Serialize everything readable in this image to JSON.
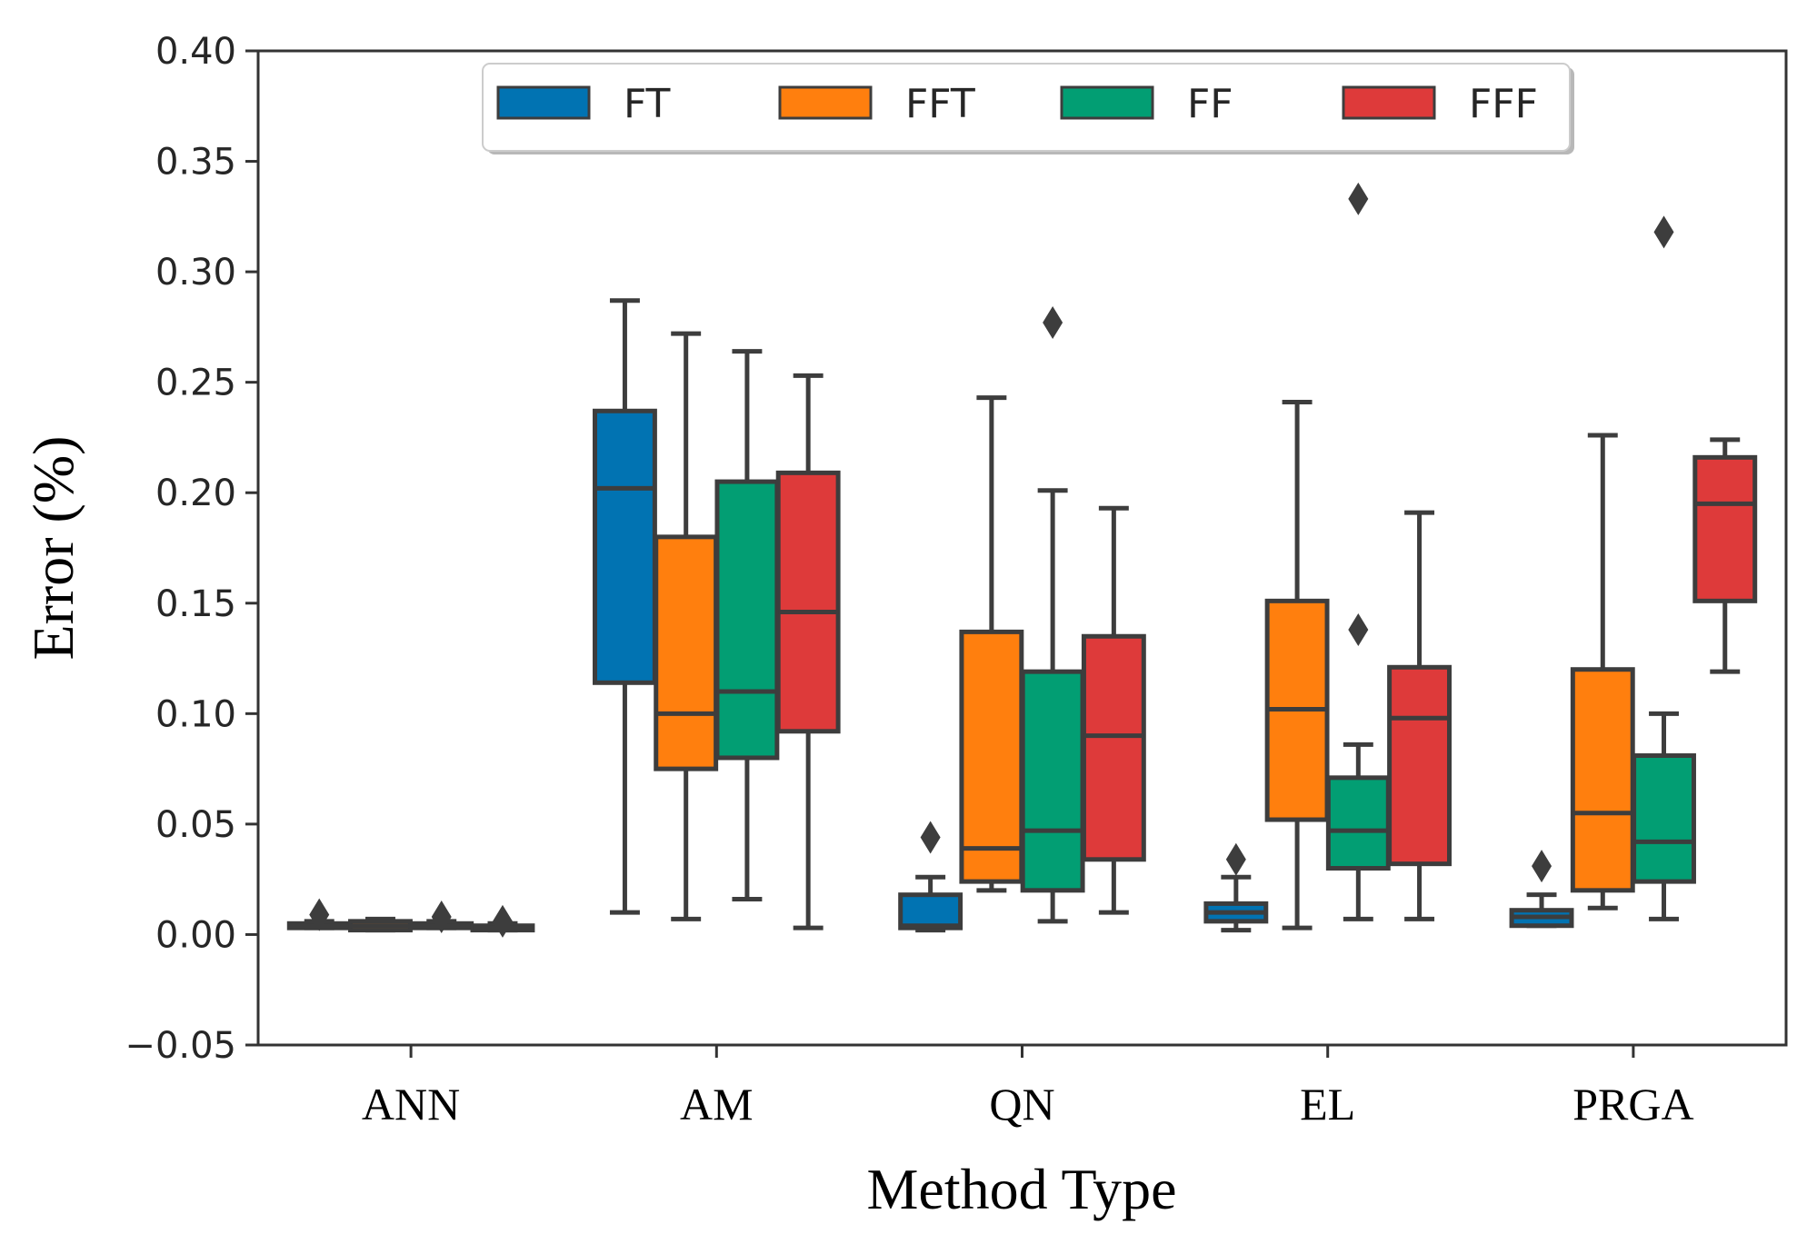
{
  "chart_data": {
    "type": "box",
    "xlabel": "Method Type",
    "ylabel": "Error (%)",
    "ylim": [
      -0.05,
      0.4
    ],
    "yticks": [
      -0.05,
      0.0,
      0.05,
      0.1,
      0.15,
      0.2,
      0.25,
      0.3,
      0.35,
      0.4
    ],
    "ytick_labels": [
      "−0.05",
      "0.00",
      "0.05",
      "0.10",
      "0.15",
      "0.20",
      "0.25",
      "0.30",
      "0.35",
      "0.40"
    ],
    "categories": [
      "ANN",
      "AM",
      "QN",
      "EL",
      "PRGA"
    ],
    "legend_position": "top-center",
    "grid": false,
    "series": [
      {
        "name": "FT",
        "color": "#0173b2",
        "boxes": [
          {
            "category": "ANN",
            "min": 0.003,
            "q1": 0.003,
            "median": 0.004,
            "q3": 0.005,
            "max": 0.006,
            "outliers": [
              0.009
            ]
          },
          {
            "category": "AM",
            "min": 0.01,
            "q1": 0.114,
            "median": 0.202,
            "q3": 0.237,
            "max": 0.287,
            "outliers": []
          },
          {
            "category": "QN",
            "min": 0.002,
            "q1": 0.003,
            "median": 0.004,
            "q3": 0.018,
            "max": 0.026,
            "outliers": [
              0.044
            ]
          },
          {
            "category": "EL",
            "min": 0.002,
            "q1": 0.006,
            "median": 0.01,
            "q3": 0.014,
            "max": 0.026,
            "outliers": [
              0.034
            ]
          },
          {
            "category": "PRGA",
            "min": 0.004,
            "q1": 0.004,
            "median": 0.008,
            "q3": 0.011,
            "max": 0.018,
            "outliers": [
              0.031
            ]
          }
        ]
      },
      {
        "name": "FFT",
        "color": "#ff7f0e",
        "boxes": [
          {
            "category": "ANN",
            "min": 0.002,
            "q1": 0.002,
            "median": 0.004,
            "q3": 0.006,
            "max": 0.007,
            "outliers": []
          },
          {
            "category": "AM",
            "min": 0.007,
            "q1": 0.075,
            "median": 0.1,
            "q3": 0.18,
            "max": 0.272,
            "outliers": []
          },
          {
            "category": "QN",
            "min": 0.02,
            "q1": 0.024,
            "median": 0.039,
            "q3": 0.137,
            "max": 0.243,
            "outliers": []
          },
          {
            "category": "EL",
            "min": 0.003,
            "q1": 0.052,
            "median": 0.102,
            "q3": 0.151,
            "max": 0.241,
            "outliers": []
          },
          {
            "category": "PRGA",
            "min": 0.012,
            "q1": 0.02,
            "median": 0.055,
            "q3": 0.12,
            "max": 0.226,
            "outliers": []
          }
        ]
      },
      {
        "name": "FF",
        "color": "#029e73",
        "boxes": [
          {
            "category": "ANN",
            "min": 0.003,
            "q1": 0.003,
            "median": 0.004,
            "q3": 0.005,
            "max": 0.006,
            "outliers": [
              0.008
            ]
          },
          {
            "category": "AM",
            "min": 0.016,
            "q1": 0.08,
            "median": 0.11,
            "q3": 0.205,
            "max": 0.264,
            "outliers": []
          },
          {
            "category": "QN",
            "min": 0.006,
            "q1": 0.02,
            "median": 0.047,
            "q3": 0.119,
            "max": 0.201,
            "outliers": [
              0.277
            ]
          },
          {
            "category": "EL",
            "min": 0.007,
            "q1": 0.03,
            "median": 0.047,
            "q3": 0.071,
            "max": 0.086,
            "outliers": [
              0.138,
              0.333
            ]
          },
          {
            "category": "PRGA",
            "min": 0.007,
            "q1": 0.024,
            "median": 0.042,
            "q3": 0.081,
            "max": 0.1,
            "outliers": [
              0.318
            ]
          }
        ]
      },
      {
        "name": "FFF",
        "color": "#de3a3a",
        "boxes": [
          {
            "category": "ANN",
            "min": 0.002,
            "q1": 0.002,
            "median": 0.003,
            "q3": 0.004,
            "max": 0.005,
            "outliers": [
              0.006
            ]
          },
          {
            "category": "AM",
            "min": 0.003,
            "q1": 0.092,
            "median": 0.146,
            "q3": 0.209,
            "max": 0.253,
            "outliers": []
          },
          {
            "category": "QN",
            "min": 0.01,
            "q1": 0.034,
            "median": 0.09,
            "q3": 0.135,
            "max": 0.193,
            "outliers": []
          },
          {
            "category": "EL",
            "min": 0.007,
            "q1": 0.032,
            "median": 0.098,
            "q3": 0.121,
            "max": 0.191,
            "outliers": []
          },
          {
            "category": "PRGA",
            "min": 0.119,
            "q1": 0.151,
            "median": 0.195,
            "q3": 0.216,
            "max": 0.224,
            "outliers": []
          }
        ]
      }
    ]
  }
}
